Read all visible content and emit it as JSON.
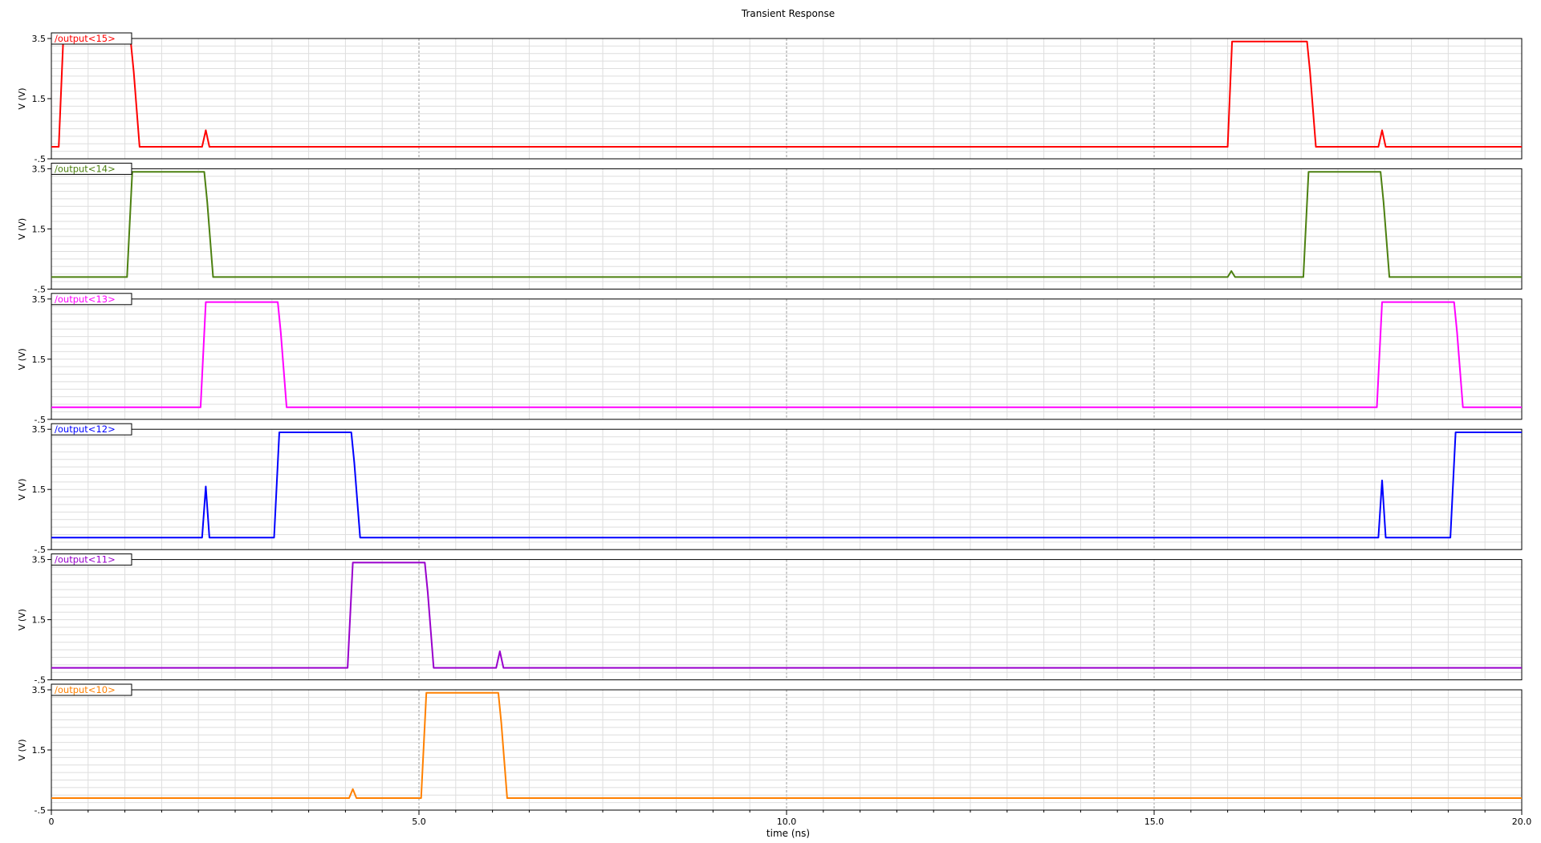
{
  "chart_data": {
    "type": "line",
    "title": "Transient Response",
    "xlabel": "time (ns)",
    "ylabel": "V (V)",
    "xlim": [
      0,
      20
    ],
    "x_ticks": [
      0,
      5.0,
      10.0,
      15.0,
      20.0
    ],
    "x_tick_labels": [
      "0",
      "5.0",
      "10.0",
      "15.0",
      "20.0"
    ],
    "ylim": [
      -0.5,
      3.5
    ],
    "y_ticks": [
      3.5,
      1.5,
      -0.5
    ],
    "y_tick_labels": [
      "3.5",
      "1.5",
      "-.5"
    ],
    "grid": true,
    "series": [
      {
        "name": "/output<15>",
        "color": "#ff0000",
        "x": [
          0,
          0.1,
          0.16,
          0.2,
          1.08,
          1.12,
          1.2,
          2.05,
          2.1,
          2.15,
          16.0,
          16.06,
          16.1,
          17.08,
          17.12,
          17.2,
          18.05,
          18.1,
          18.15,
          20
        ],
        "y": [
          -0.1,
          -0.1,
          3.4,
          3.4,
          3.4,
          2.4,
          -0.1,
          -0.1,
          0.45,
          -0.1,
          -0.1,
          3.4,
          3.4,
          3.4,
          2.4,
          -0.1,
          -0.1,
          0.45,
          -0.1,
          -0.1
        ]
      },
      {
        "name": "/output<14>",
        "color": "#4c8010",
        "x": [
          0,
          1.03,
          1.1,
          1.15,
          2.08,
          2.12,
          2.2,
          16.0,
          16.05,
          16.1,
          17.03,
          17.1,
          17.15,
          18.08,
          18.12,
          18.2,
          20
        ],
        "y": [
          -0.1,
          -0.1,
          3.4,
          3.4,
          3.4,
          2.4,
          -0.1,
          -0.1,
          0.1,
          -0.1,
          -0.1,
          3.4,
          3.4,
          3.4,
          2.4,
          -0.1,
          -0.1
        ]
      },
      {
        "name": "/output<13>",
        "color": "#ff00ff",
        "x": [
          0,
          2.03,
          2.1,
          2.15,
          3.08,
          3.12,
          3.2,
          18.03,
          18.1,
          18.15,
          19.08,
          19.12,
          19.2,
          20
        ],
        "y": [
          -0.1,
          -0.1,
          3.4,
          3.4,
          3.4,
          2.4,
          -0.1,
          -0.1,
          3.4,
          3.4,
          3.4,
          2.4,
          -0.1,
          -0.1
        ]
      },
      {
        "name": "/output<12>",
        "color": "#0000ff",
        "x": [
          0,
          2.05,
          2.1,
          2.15,
          3.03,
          3.1,
          3.15,
          4.08,
          4.12,
          4.2,
          18.05,
          18.1,
          18.15,
          19.03,
          19.1,
          19.15,
          20
        ],
        "y": [
          -0.1,
          -0.1,
          1.6,
          -0.1,
          -0.1,
          3.4,
          3.4,
          3.4,
          2.4,
          -0.1,
          -0.1,
          1.8,
          -0.1,
          -0.1,
          3.4,
          3.4,
          3.4
        ]
      },
      {
        "name": "/output<11>",
        "color": "#9900cc",
        "x": [
          0,
          4.03,
          4.1,
          4.15,
          5.08,
          5.12,
          5.2,
          6.05,
          6.1,
          6.15,
          20
        ],
        "y": [
          -0.1,
          -0.1,
          3.4,
          3.4,
          3.4,
          2.4,
          -0.1,
          -0.1,
          0.45,
          -0.1,
          -0.1
        ]
      },
      {
        "name": "/output<10>",
        "color": "#ff8000",
        "x": [
          0,
          4.05,
          4.1,
          4.15,
          5.03,
          5.1,
          5.15,
          6.08,
          6.12,
          6.2,
          20
        ],
        "y": [
          -0.1,
          -0.1,
          0.2,
          -0.1,
          -0.1,
          3.4,
          3.4,
          3.4,
          2.4,
          -0.1,
          -0.1
        ]
      }
    ]
  }
}
